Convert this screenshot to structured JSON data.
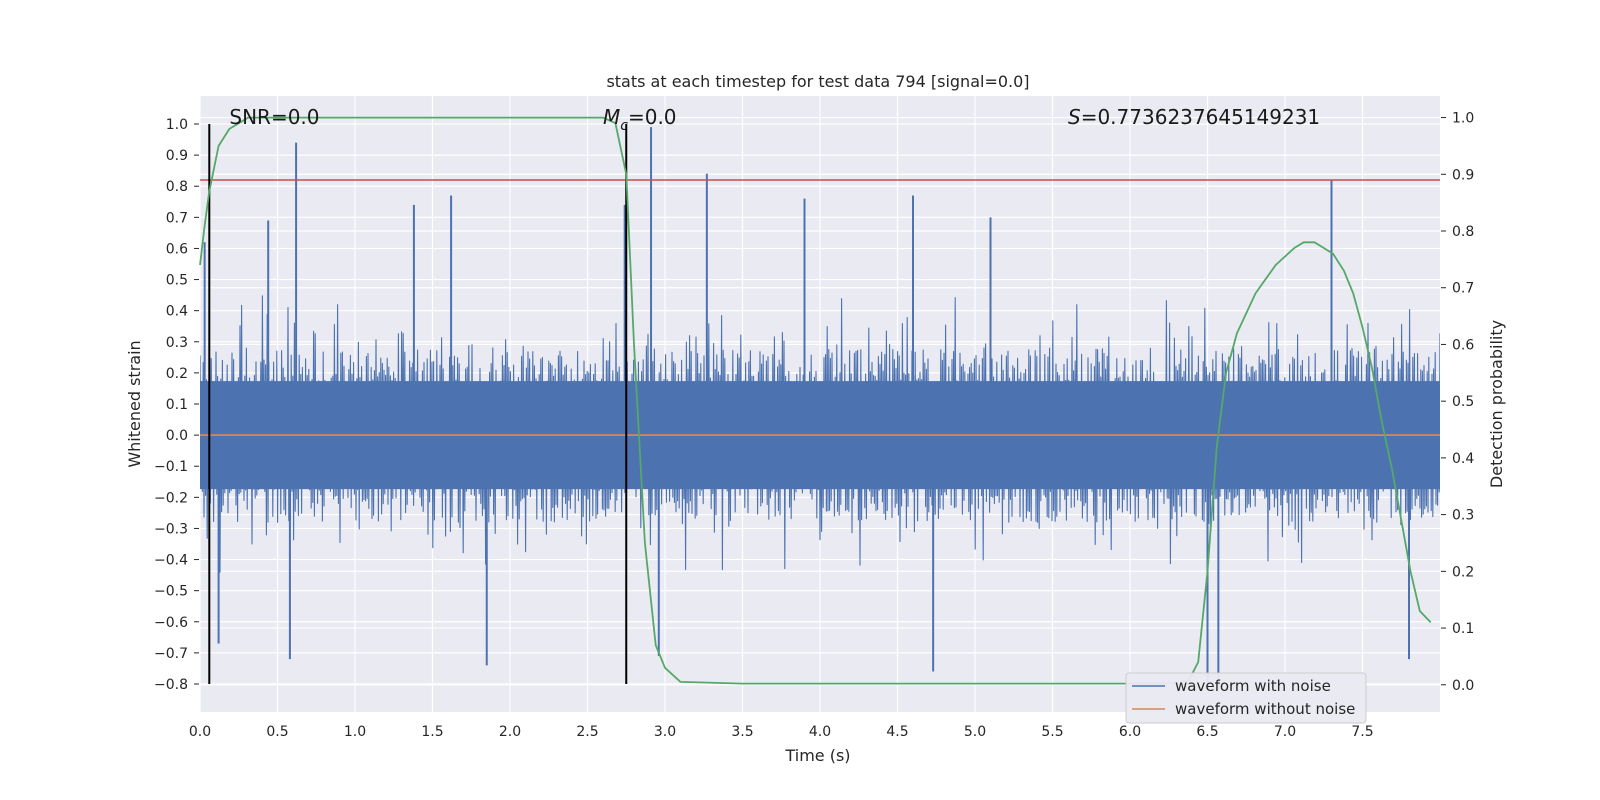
{
  "chart_data": {
    "type": "line",
    "title": "stats at each timestep for test data 794 [signal=0.0]",
    "xlabel": "Time (s)",
    "ylabel": "Whitened strain",
    "y2label": "Detection probability",
    "xlim": [
      0.0,
      8.0
    ],
    "ylim": [
      -0.89,
      1.09
    ],
    "y2lim": [
      -0.048,
      1.038
    ],
    "xticks": [
      "0.0",
      "0.5",
      "1.0",
      "1.5",
      "2.0",
      "2.5",
      "3.0",
      "3.5",
      "4.0",
      "4.5",
      "5.0",
      "5.5",
      "6.0",
      "6.5",
      "7.0",
      "7.5"
    ],
    "yticks": [
      "1.0",
      "0.9",
      "0.8",
      "0.7",
      "0.6",
      "0.5",
      "0.4",
      "0.3",
      "0.2",
      "0.1",
      "0.0",
      "−0.1",
      "−0.2",
      "−0.3",
      "−0.4",
      "−0.5",
      "−0.6",
      "−0.7",
      "−0.8"
    ],
    "y2ticks": [
      "1.0",
      "0.9",
      "0.8",
      "0.7",
      "0.6",
      "0.5",
      "0.4",
      "0.3",
      "0.2",
      "0.1",
      "0.0"
    ],
    "grid": true,
    "legend_position": "lower-right",
    "series": [
      {
        "name": "waveform with noise",
        "color": "#4c72b0",
        "axis": "left",
        "band_typical": [
          -0.28,
          0.28
        ],
        "peaks": [
          {
            "x": 0.62,
            "y": 0.94
          },
          {
            "x": 0.03,
            "y": 0.62
          },
          {
            "x": 0.44,
            "y": 0.69
          },
          {
            "x": 1.38,
            "y": 0.74
          },
          {
            "x": 1.62,
            "y": 0.77
          },
          {
            "x": 2.74,
            "y": 0.74
          },
          {
            "x": 2.91,
            "y": 0.99
          },
          {
            "x": 3.27,
            "y": 0.84
          },
          {
            "x": 3.9,
            "y": 0.76
          },
          {
            "x": 4.6,
            "y": 0.77
          },
          {
            "x": 5.1,
            "y": 0.7
          },
          {
            "x": 7.3,
            "y": 0.82
          },
          {
            "x": 0.58,
            "y": -0.72
          },
          {
            "x": 0.12,
            "y": -0.67
          },
          {
            "x": 1.85,
            "y": -0.74
          },
          {
            "x": 2.96,
            "y": -0.71
          },
          {
            "x": 4.73,
            "y": -0.76
          },
          {
            "x": 6.5,
            "y": -0.82
          },
          {
            "x": 6.57,
            "y": -0.79
          },
          {
            "x": 7.8,
            "y": -0.72
          }
        ]
      },
      {
        "name": "waveform without noise",
        "color": "#dd8452",
        "axis": "left",
        "x": [
          0.0,
          8.0
        ],
        "y": [
          0.0,
          0.0
        ]
      },
      {
        "name": "detection probability",
        "color": "#55a868",
        "axis": "right",
        "x": [
          0.0,
          0.03,
          0.06,
          0.12,
          0.19,
          0.25,
          0.31,
          0.38,
          0.5,
          0.75,
          1.0,
          1.5,
          2.0,
          2.4,
          2.6,
          2.68,
          2.75,
          2.8,
          2.87,
          2.94,
          3.0,
          3.1,
          3.5,
          4.0,
          5.0,
          6.0,
          6.3,
          6.38,
          6.44,
          6.5,
          6.56,
          6.62,
          6.69,
          6.81,
          6.94,
          7.06,
          7.12,
          7.19,
          7.25,
          7.31,
          7.38,
          7.44,
          7.5,
          7.56,
          7.62,
          7.69,
          7.75,
          7.81,
          7.87,
          7.94
        ],
        "y": [
          0.74,
          0.81,
          0.87,
          0.95,
          0.98,
          0.99,
          1.0,
          1.0,
          1.0,
          1.0,
          1.0,
          1.0,
          1.0,
          1.0,
          1.0,
          0.99,
          0.9,
          0.6,
          0.25,
          0.07,
          0.03,
          0.005,
          0.002,
          0.002,
          0.002,
          0.002,
          0.003,
          0.008,
          0.04,
          0.2,
          0.42,
          0.55,
          0.62,
          0.69,
          0.74,
          0.77,
          0.78,
          0.78,
          0.77,
          0.76,
          0.73,
          0.69,
          0.63,
          0.56,
          0.47,
          0.38,
          0.29,
          0.2,
          0.13,
          0.11
        ]
      }
    ],
    "hlines": [
      {
        "axis": "left",
        "y": 0.82,
        "color": "#c44e52"
      }
    ],
    "vlines": [
      {
        "axis": "left",
        "x": 0.06,
        "y0": -0.8,
        "y1": 1.0,
        "color": "#000000"
      },
      {
        "axis": "left",
        "x": 2.75,
        "y0": -0.8,
        "y1": 1.0,
        "color": "#000000"
      }
    ],
    "annotations": [
      {
        "x": 0.19,
        "text": "SNR=0.0"
      },
      {
        "x": 2.6,
        "text_pre": "M",
        "text_sub": "c",
        "text_post": "=0.0"
      },
      {
        "x": 5.6,
        "text_pre": "S",
        "text_post": "=0.7736237645149231"
      }
    ],
    "legend": [
      "waveform with noise",
      "waveform without noise"
    ]
  }
}
